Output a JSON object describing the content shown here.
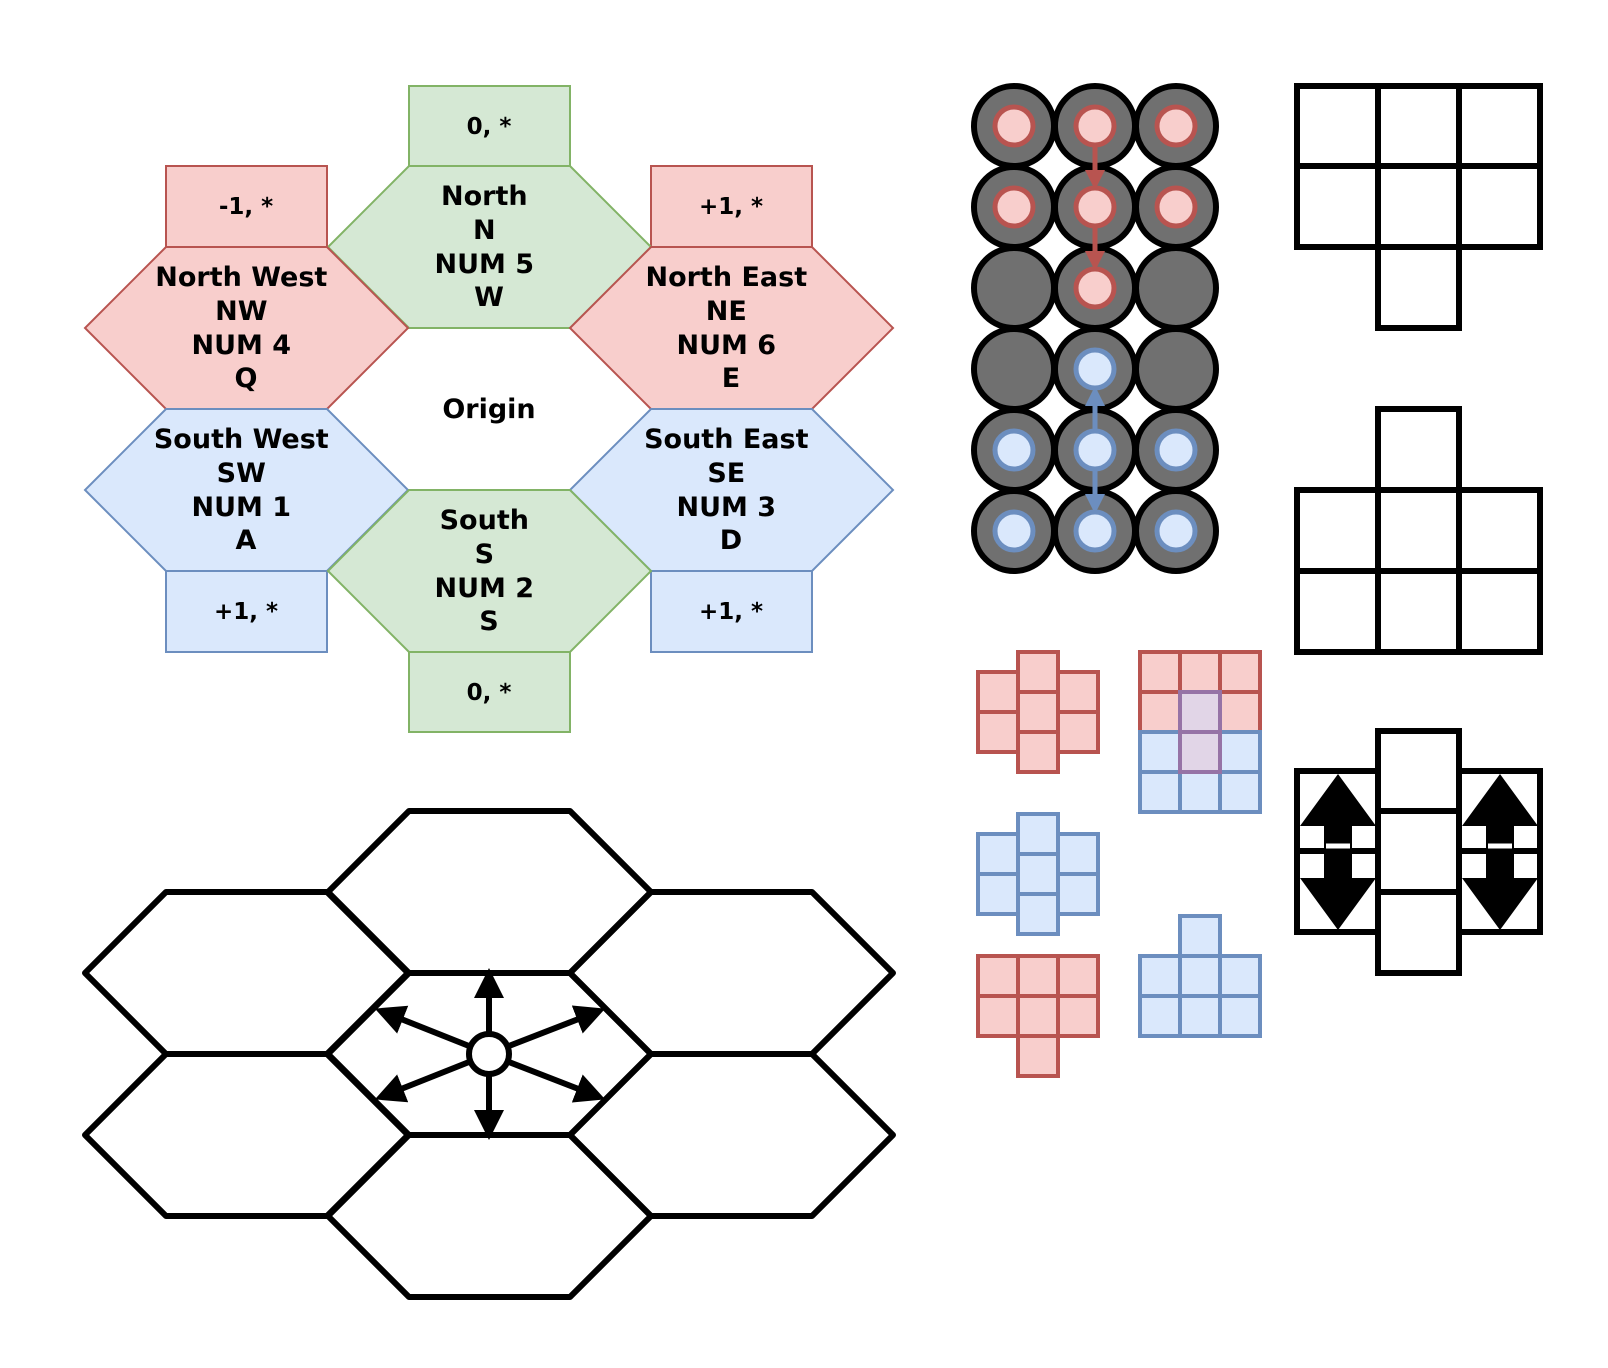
{
  "colors": {
    "red_fill": "#f8cecc",
    "red_stroke": "#b85450",
    "green_fill": "#d5e8d4",
    "green_stroke": "#82b366",
    "blue_fill": "#dae8fc",
    "blue_stroke": "#6c8ebf",
    "purple_fill": "#e1d5e7",
    "purple_stroke": "#9673a6",
    "dark_gray": "#707070",
    "black": "#000000"
  },
  "hex_directions": {
    "north": {
      "lines": [
        "North",
        "N",
        "NUM 5",
        "W"
      ],
      "offset": "0, *"
    },
    "north_west": {
      "lines": [
        "North West",
        "NW",
        "NUM 4",
        "Q"
      ],
      "offset": "-1, *"
    },
    "north_east": {
      "lines": [
        "North East",
        "NE",
        "NUM 6",
        "E"
      ],
      "offset": "+1, *"
    },
    "south_west": {
      "lines": [
        "South West",
        "SW",
        "NUM 1",
        "A"
      ],
      "offset": "+1, *"
    },
    "south_east": {
      "lines": [
        "South East",
        "SE",
        "NUM 3",
        "D"
      ],
      "offset": "+1, *"
    },
    "south": {
      "lines": [
        "South",
        "S",
        "NUM 2",
        "S"
      ],
      "offset": "0, *"
    },
    "origin": "Origin"
  },
  "icons": [
    "up-arrow-icon",
    "down-arrow-icon",
    "double-arrow-icon"
  ]
}
